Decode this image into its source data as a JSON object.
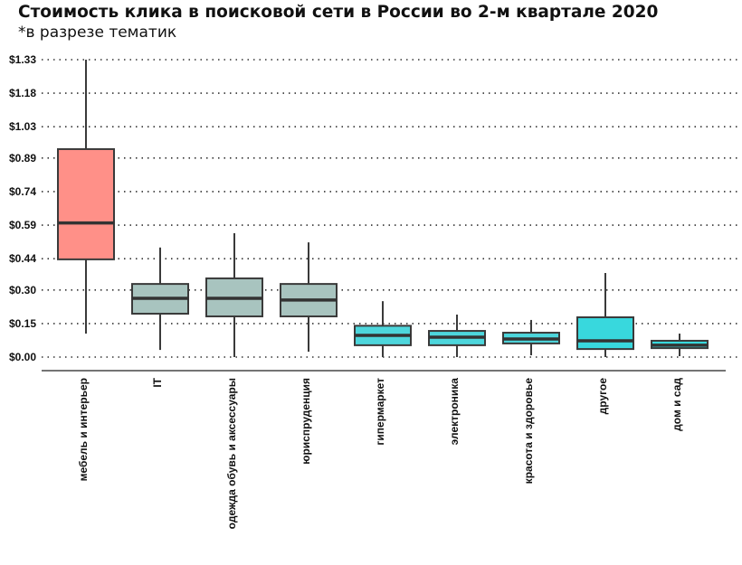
{
  "chart_data": {
    "type": "boxplot",
    "title": "Стоимость клика в поисковой сети в России во 2-м квартале 2020",
    "subtitle": "*в разрезе тематик",
    "xlabel": "",
    "ylabel": "",
    "ylim": [
      0,
      1.33
    ],
    "yticks": [
      0.0,
      0.15,
      0.3,
      0.44,
      0.59,
      0.74,
      0.89,
      1.03,
      1.18,
      1.33
    ],
    "ytick_labels": [
      "$0.00",
      "$0.15",
      "$0.30",
      "$0.44",
      "$0.59",
      "$0.74",
      "$0.89",
      "$1.03",
      "$1.18",
      "$1.33"
    ],
    "grid": "horizontal dotted",
    "categories": [
      "мебель и интерьер",
      "IT",
      "одежда обувь и аксессуары",
      "юриспруденция",
      "гипермаркет",
      "электроника",
      "красота и здоровье",
      "другое",
      "дом и сад"
    ],
    "boxes": [
      {
        "whisker_low": 0.105,
        "q1": 0.437,
        "median": 0.6,
        "q3": 0.93,
        "whisker_high": 1.33,
        "color": "#ff9088"
      },
      {
        "whisker_low": 0.032,
        "q1": 0.194,
        "median": 0.263,
        "q3": 0.327,
        "whisker_high": 0.49,
        "color": "#a8c4bf"
      },
      {
        "whisker_low": 0.0,
        "q1": 0.182,
        "median": 0.263,
        "q3": 0.352,
        "whisker_high": 0.554,
        "color": "#a8c4bf"
      },
      {
        "whisker_low": 0.024,
        "q1": 0.182,
        "median": 0.255,
        "q3": 0.327,
        "whisker_high": 0.513,
        "color": "#a8c4bf"
      },
      {
        "whisker_low": 0.0,
        "q1": 0.053,
        "median": 0.097,
        "q3": 0.14,
        "whisker_high": 0.25,
        "color": "#4dd6dc"
      },
      {
        "whisker_low": 0.0,
        "q1": 0.053,
        "median": 0.089,
        "q3": 0.117,
        "whisker_high": 0.19,
        "color": "#4dd6dc"
      },
      {
        "whisker_low": 0.008,
        "q1": 0.061,
        "median": 0.081,
        "q3": 0.109,
        "whisker_high": 0.166,
        "color": "#4dd6dc"
      },
      {
        "whisker_low": 0.0,
        "q1": 0.036,
        "median": 0.073,
        "q3": 0.178,
        "whisker_high": 0.376,
        "color": "#38d8dd"
      },
      {
        "whisker_low": 0.004,
        "q1": 0.04,
        "median": 0.053,
        "q3": 0.073,
        "whisker_high": 0.105,
        "color": "#38d8dd"
      }
    ]
  }
}
